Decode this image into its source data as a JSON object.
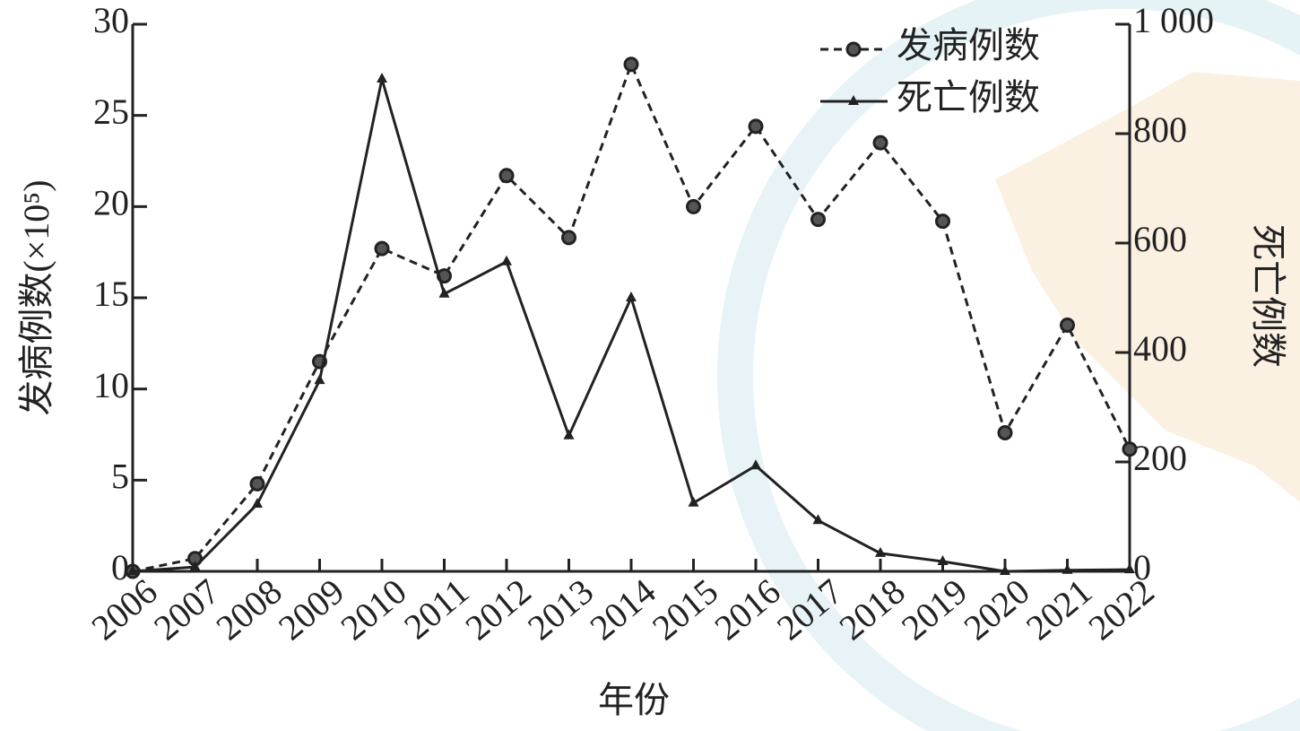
{
  "chart_data": {
    "type": "line",
    "x_label": "年份",
    "y_label": "发病例数(×10⁵)",
    "y2_label": "死亡例数",
    "categories": [
      "2006",
      "2007",
      "2008",
      "2009",
      "2010",
      "2011",
      "2012",
      "2013",
      "2014",
      "2015",
      "2016",
      "2017",
      "2018",
      "2019",
      "2020",
      "2021",
      "2022"
    ],
    "series": [
      {
        "name": "发病例数",
        "color": "#222",
        "style": "dashed",
        "marker": "circle",
        "axis": "y",
        "values": [
          0,
          0.7,
          4.8,
          11.5,
          17.7,
          16.2,
          21.7,
          18.3,
          27.8,
          20.0,
          24.4,
          19.3,
          23.5,
          19.2,
          7.6,
          13.5,
          6.7
        ]
      },
      {
        "name": "死亡例数",
        "color": "#222",
        "style": "solid",
        "marker": "triangle",
        "axis": "y2",
        "values": [
          0,
          8,
          123,
          349,
          900,
          507,
          566,
          248,
          500,
          125,
          193,
          93,
          33,
          18,
          0,
          2,
          3
        ]
      }
    ],
    "ylim": [
      0,
      30
    ],
    "yticks": [
      0,
      5,
      10,
      15,
      20,
      25,
      30
    ],
    "y2lim": [
      0,
      1000
    ],
    "y2ticks": [
      0,
      200,
      400,
      600,
      800,
      {
        "value": 1000,
        "label": "1 000"
      }
    ],
    "legend": "top-right"
  }
}
